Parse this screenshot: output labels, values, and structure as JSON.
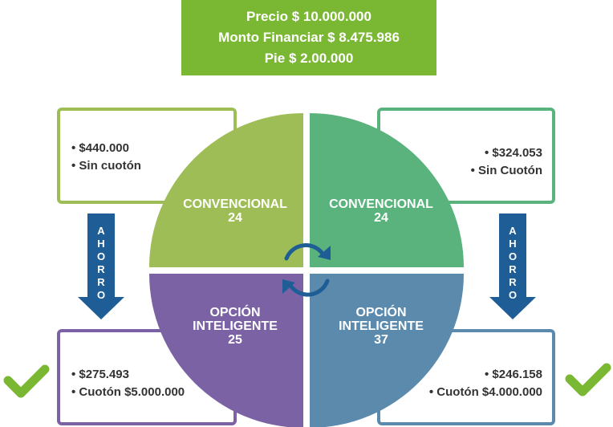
{
  "header": {
    "precio": "Precio $ 10.000.000",
    "monto": "Monto Financiar $ 8.475.986",
    "pie": "Pie $ 2.00.000"
  },
  "quadrants": {
    "top_left": {
      "label": "CONVENCIONAL",
      "number": "24",
      "color": "#9ebd56"
    },
    "top_right": {
      "label": "CONVENCIONAL",
      "number": "24",
      "color": "#5ab37c"
    },
    "bottom_left": {
      "label_1": "OPCIÓN",
      "label_2": "INTELIGENTE",
      "number": "25",
      "color": "#7b62a4"
    },
    "bottom_right": {
      "label_1": "OPCIÓN",
      "label_2": "INTELIGENTE",
      "number": "37",
      "color": "#5b8aac"
    }
  },
  "boxes": {
    "top_left": [
      "$440.000",
      "Sin cuotón"
    ],
    "top_right": [
      "$324.053",
      "Sin Cuotón"
    ],
    "bottom_left": [
      "$275.493",
      "Cuotón $5.000.000"
    ],
    "bottom_right": [
      "$246.158",
      "Cuotón $4.000.000"
    ]
  },
  "arrows": {
    "left": [
      "A",
      "H",
      "O",
      "R",
      "R",
      "O"
    ],
    "right": [
      "A",
      "H",
      "O",
      "R",
      "R",
      "O"
    ],
    "color": "#1e5d96"
  },
  "icons": {
    "center": "cycle-arrows-icon",
    "check": "checkmark-icon",
    "check_color": "#7ab833"
  }
}
